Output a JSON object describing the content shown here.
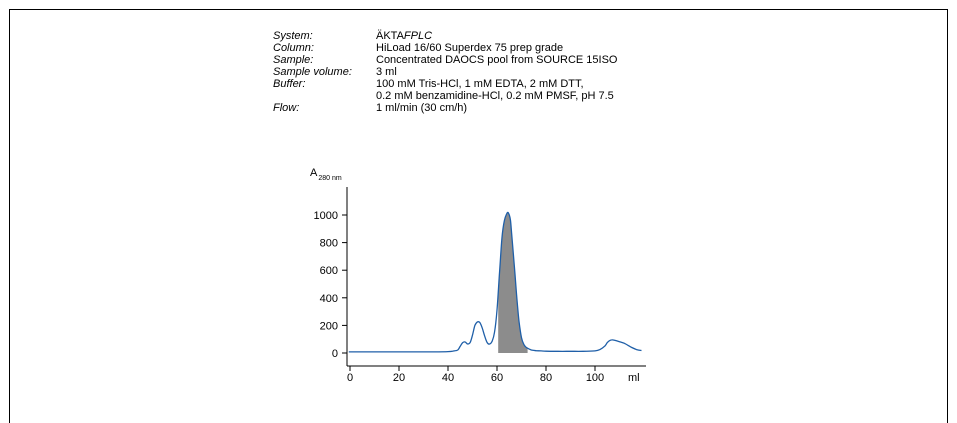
{
  "params": [
    {
      "label": "System:",
      "value": "ÄKTA",
      "value_italic": "FPLC"
    },
    {
      "label": "Column:",
      "value": "HiLoad 16/60 Superdex 75 prep grade"
    },
    {
      "label": "Sample:",
      "value": "Concentrated DAOCS pool from SOURCE 15ISO"
    },
    {
      "label": "Sample volume:",
      "value": "3 ml"
    },
    {
      "label": "Buffer:",
      "value": "100 mM Tris-HCl, 1 mM EDTA, 2 mM DTT,"
    },
    {
      "label": "",
      "value": "0.2 mM benzamidine-HCl, 0.2 mM PMSF, pH 7.5"
    },
    {
      "label": "Flow:",
      "value": "1 ml/min (30 cm/h)"
    }
  ],
  "colors": {
    "trace": "#1f5fa8",
    "fraction_fill": "#8c8c8c"
  },
  "chart_data": {
    "type": "line",
    "ylabel": "A",
    "ylabel_sub": "280 nm",
    "xlabel": "ml",
    "xlim": [
      0,
      120
    ],
    "ylim": [
      0,
      1000
    ],
    "x_ticks": [
      0,
      20,
      40,
      60,
      80,
      100
    ],
    "y_ticks": [
      0,
      200,
      400,
      600,
      800,
      1000
    ],
    "fraction": {
      "x_start": 60.5,
      "x_end": 72.5
    },
    "series": [
      {
        "x": [
          -0.5,
          10,
          20,
          30,
          40,
          42,
          44,
          45,
          46,
          47,
          48,
          49,
          50,
          51,
          52,
          53,
          54,
          55,
          56,
          57,
          58,
          59,
          60,
          61,
          62,
          63,
          64,
          64.5,
          65,
          65.5,
          66,
          67,
          68,
          69,
          70,
          71,
          72,
          73,
          74,
          76,
          78,
          80,
          85,
          90,
          95,
          100,
          102,
          104,
          105,
          106,
          107,
          108,
          110,
          112,
          115,
          117,
          119
        ],
        "y": [
          8,
          8,
          8,
          8,
          10,
          14,
          22,
          50,
          75,
          80,
          65,
          75,
          130,
          200,
          225,
          220,
          180,
          120,
          75,
          65,
          85,
          150,
          310,
          570,
          830,
          960,
          1010,
          1018,
          1000,
          960,
          860,
          650,
          420,
          230,
          110,
          60,
          40,
          30,
          22,
          17,
          15,
          13,
          12,
          12,
          12,
          15,
          25,
          50,
          75,
          90,
          95,
          92,
          82,
          70,
          40,
          25,
          18
        ]
      }
    ]
  }
}
